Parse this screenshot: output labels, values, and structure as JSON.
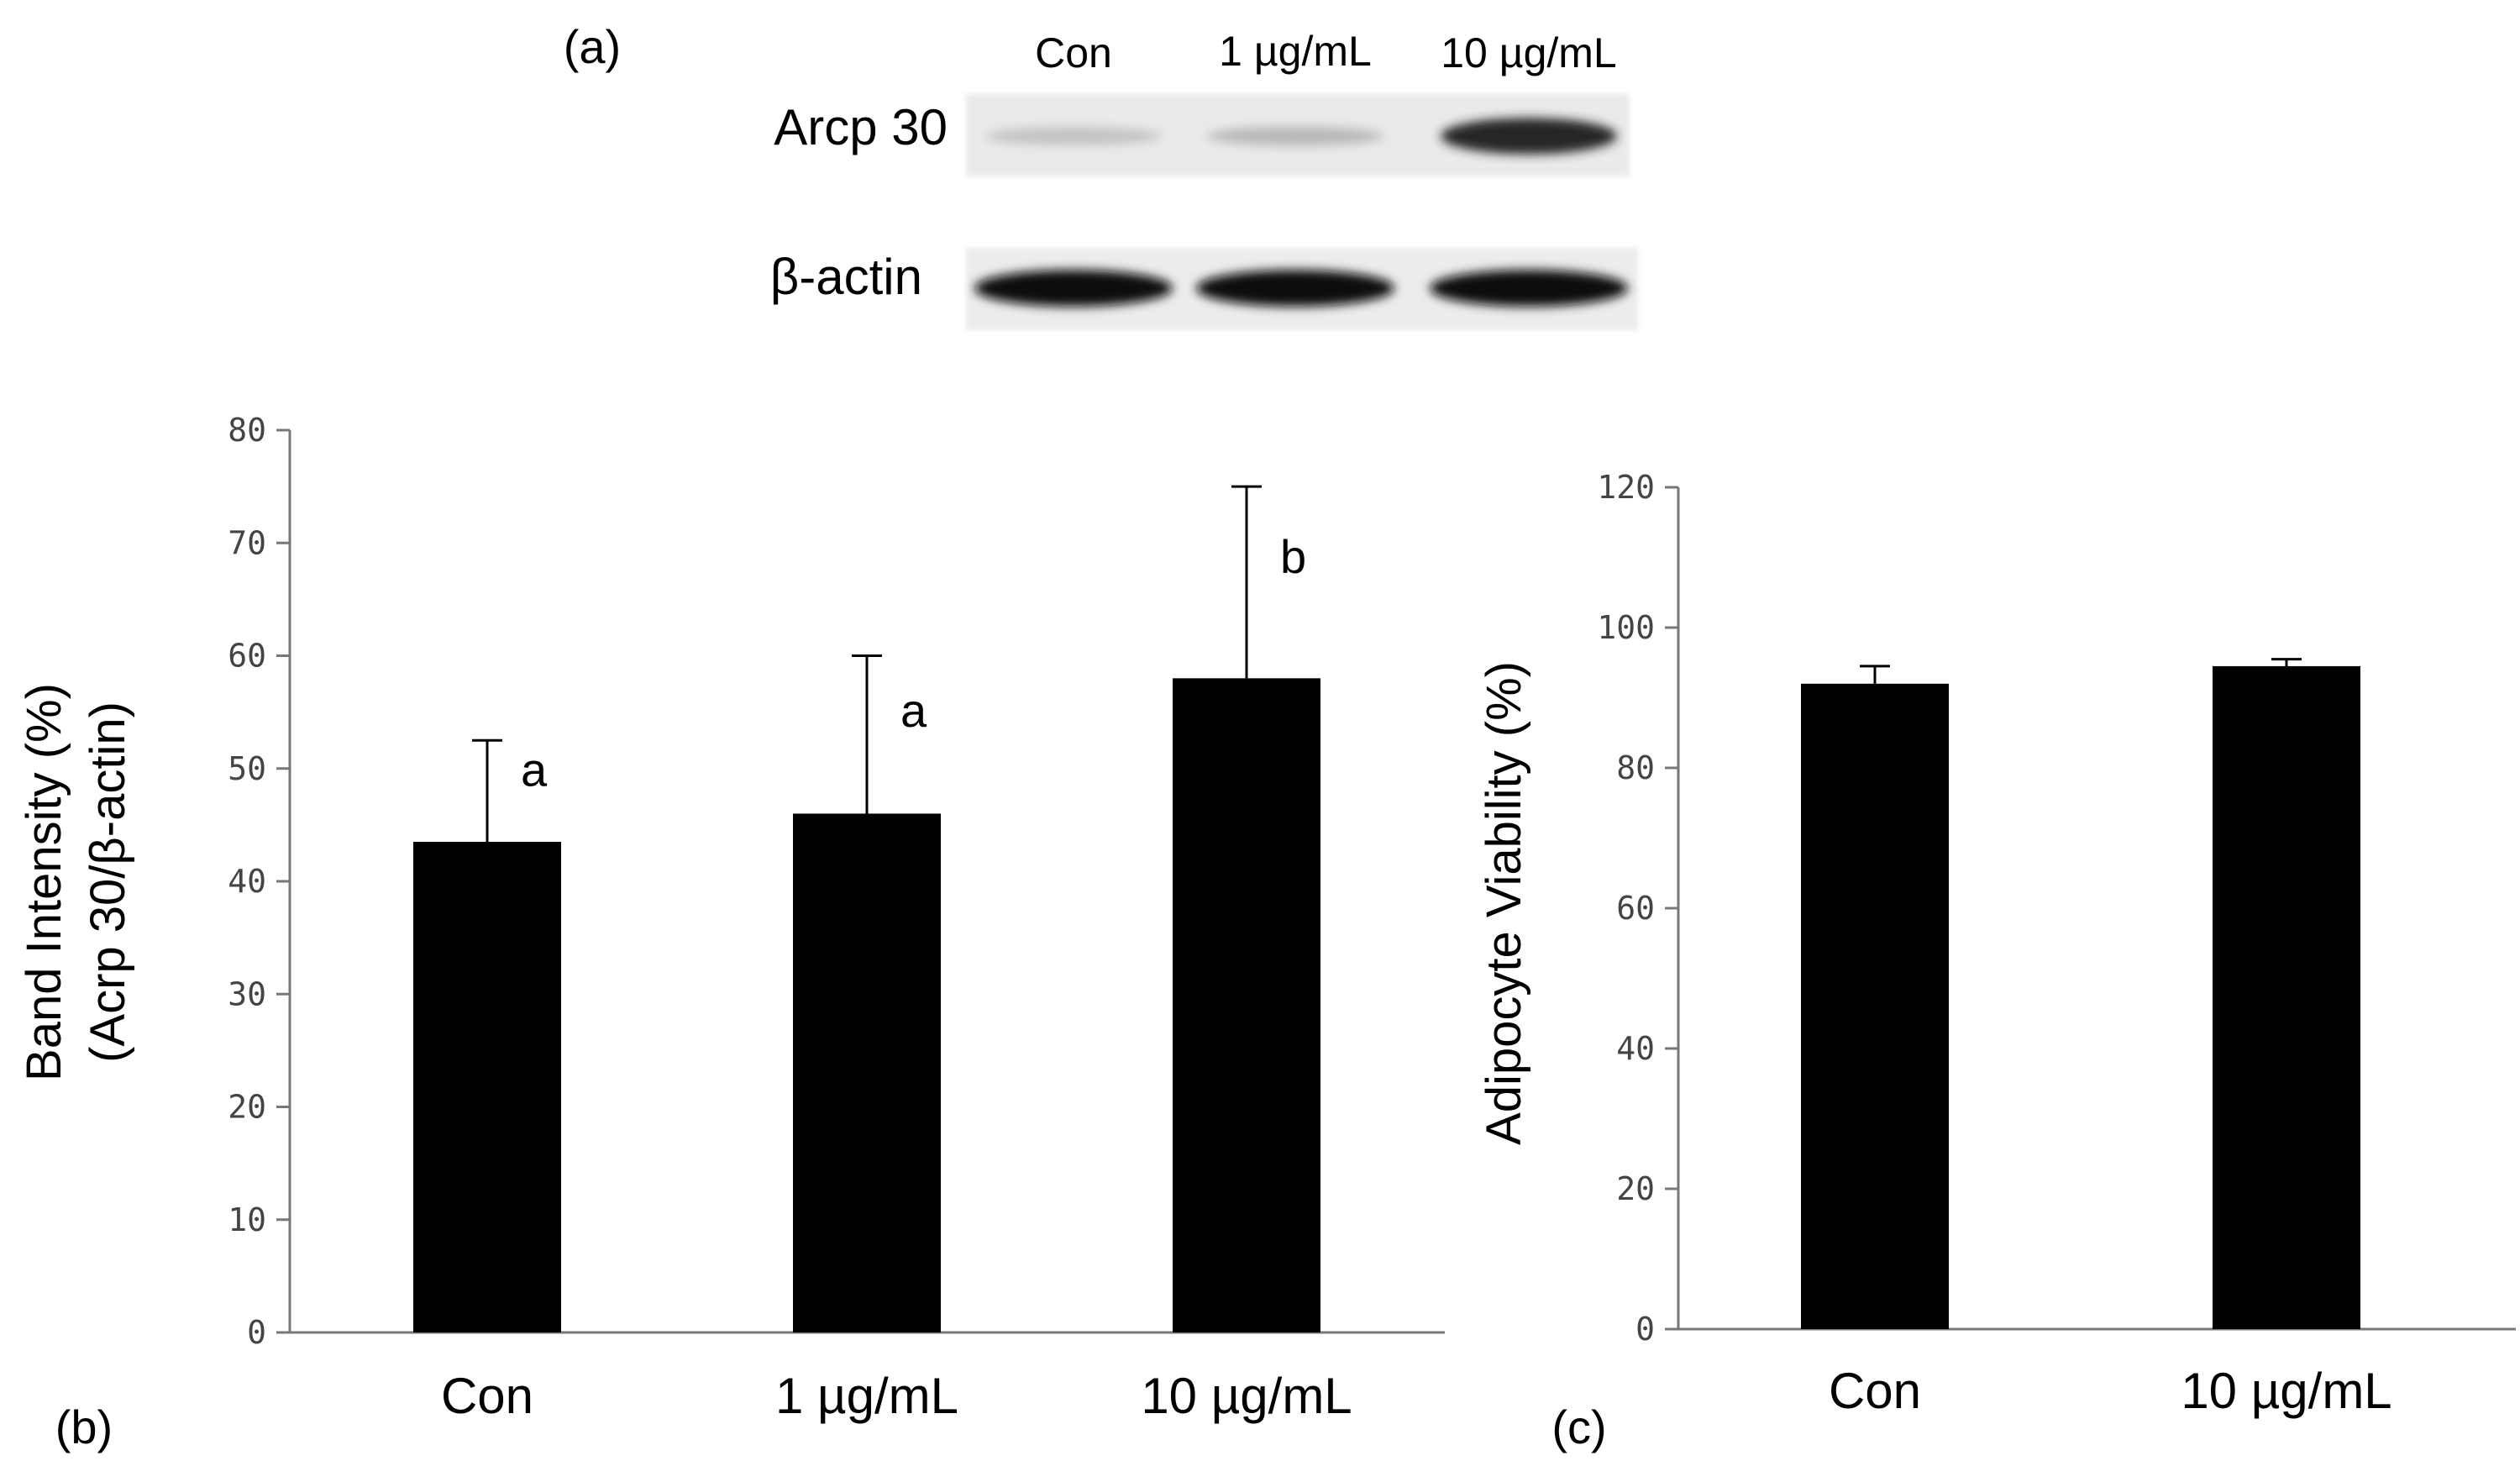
{
  "panel_labels": {
    "a": "(a)",
    "b": "(b)",
    "c": "(c)"
  },
  "blot": {
    "lanes": [
      "Con",
      "1 µg/mL",
      "10 µg/mL"
    ],
    "rows": [
      "Arcp 30",
      "β-actin"
    ],
    "band_intensity": {
      "Arcp 30": [
        0.18,
        0.22,
        0.85
      ],
      "β-actin": [
        0.95,
        0.95,
        0.95
      ]
    }
  },
  "chart_data": [
    {
      "type": "bar",
      "panel": "b",
      "categories": [
        "Con",
        "1 µg/mL",
        "10 µg/mL"
      ],
      "values": [
        43.5,
        46,
        58
      ],
      "errors": [
        9,
        14,
        17
      ],
      "annotations": [
        "a",
        "a",
        "b"
      ],
      "ylabel": "Band Intensity (%)",
      "ylabel2": "(Acrp 30/β-actin)",
      "ylim": [
        0,
        80
      ],
      "yticks": [
        0,
        10,
        20,
        30,
        40,
        50,
        60,
        70,
        80
      ],
      "bar_color": "#000000"
    },
    {
      "type": "bar",
      "panel": "c",
      "categories": [
        "Con",
        "10 µg/mL"
      ],
      "values": [
        92,
        94.5
      ],
      "errors": [
        2.5,
        1
      ],
      "annotations": [
        "",
        ""
      ],
      "ylabel": "Adipocyte Viability (%)",
      "ylim": [
        0,
        120
      ],
      "yticks": [
        0,
        20,
        40,
        60,
        80,
        100,
        120
      ],
      "bar_color": "#000000"
    }
  ]
}
